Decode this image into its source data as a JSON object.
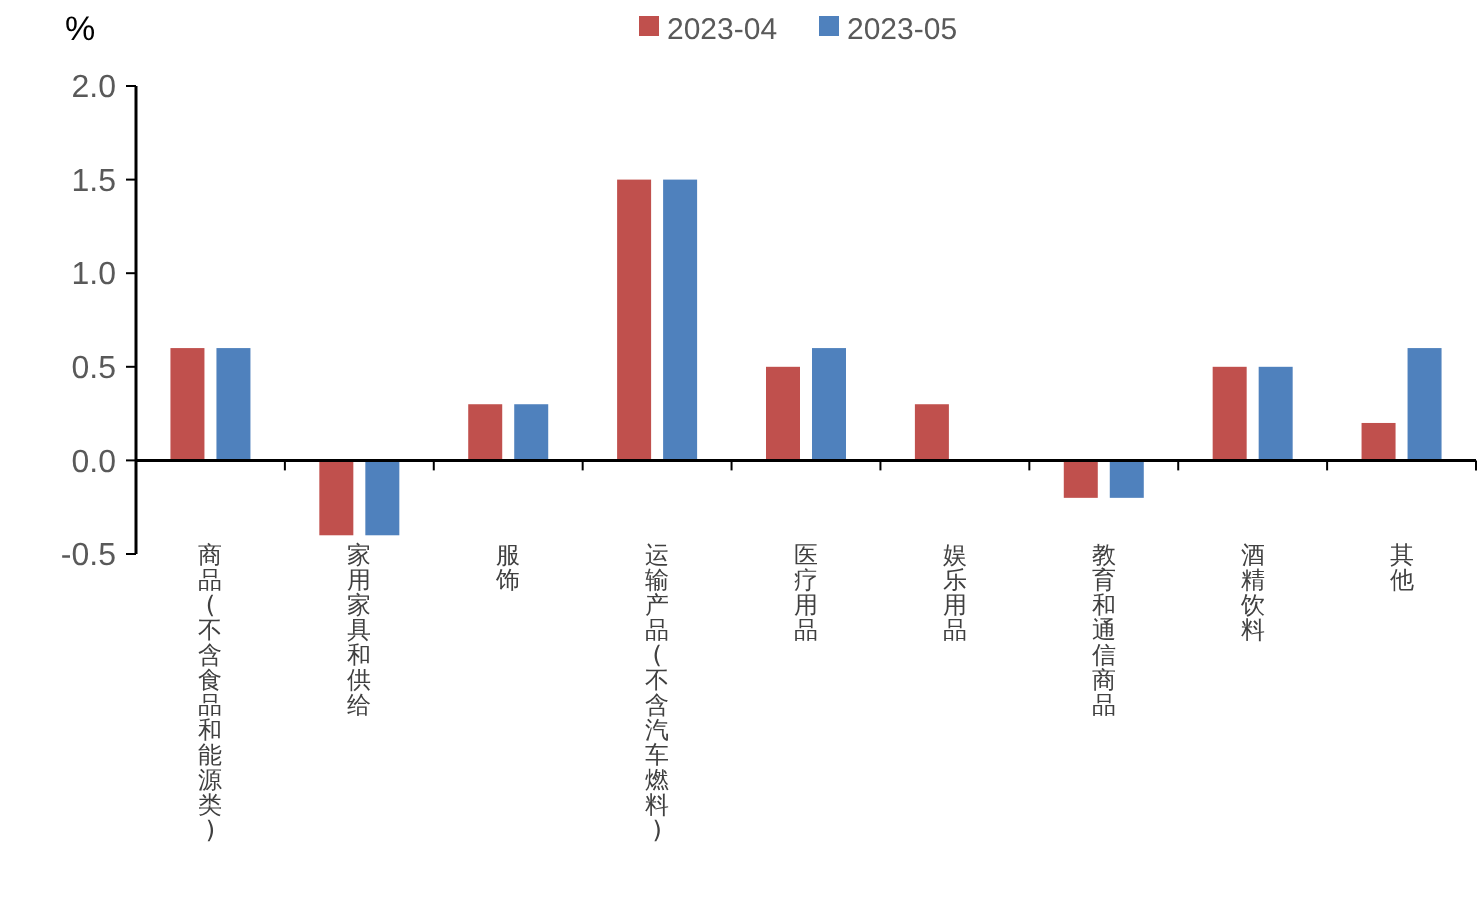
{
  "chart_data": {
    "type": "bar",
    "ylabel": "%",
    "categories": [
      "商品(不含食品和能源类)",
      "家用家具和供给",
      "服饰",
      "运输产品(不含汽车燃料)",
      "医疗用品",
      "娱乐用品",
      "教育和通信商品",
      "酒精饮料",
      "其他"
    ],
    "series": [
      {
        "name": "2023-04",
        "color": "#c0504d",
        "values": [
          0.6,
          -0.4,
          0.3,
          1.5,
          0.5,
          0.3,
          -0.2,
          0.5,
          0.2
        ]
      },
      {
        "name": "2023-05",
        "color": "#4f81bd",
        "values": [
          0.6,
          -0.4,
          0.3,
          1.5,
          0.6,
          0,
          -0.2,
          0.5,
          0.6
        ]
      }
    ],
    "ylim": [
      -0.5,
      2.0
    ],
    "yticks": [
      {
        "value": -0.5,
        "label": "-0.5"
      },
      {
        "value": 0,
        "label": "0.0"
      },
      {
        "value": 0.5,
        "label": "0.5"
      },
      {
        "value": 1,
        "label": "1.0"
      },
      {
        "value": 1.5,
        "label": "1.5"
      },
      {
        "value": 2,
        "label": "2.0"
      }
    ],
    "legend": "top"
  }
}
